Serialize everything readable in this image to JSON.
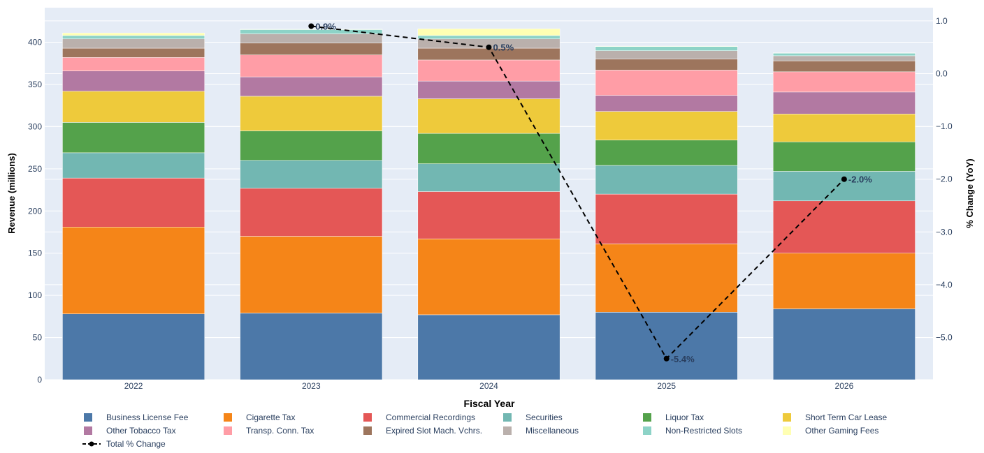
{
  "chart_data": {
    "type": "bar",
    "stacked": true,
    "xlabel": "Fiscal Year",
    "ylabel": "Revenue (millions)",
    "y2label": "% Change (YoY)",
    "categories": [
      "2022",
      "2023",
      "2024",
      "2025",
      "2026"
    ],
    "ylim": [
      0,
      441
    ],
    "y2lim": [
      -5.8,
      1.25
    ],
    "yticks": [
      0,
      50,
      100,
      150,
      200,
      250,
      300,
      350,
      400
    ],
    "y2ticks": [
      1,
      0,
      -1,
      -2,
      -3,
      -4,
      -5
    ],
    "y2tick_labels": [
      "1.0",
      "0.0",
      "−1.0",
      "−2.0",
      "−3.0",
      "−4.0",
      "−5.0"
    ],
    "legend_position": "bottom",
    "grid": true,
    "colors": {
      "plot_bg": "#e5ecf6",
      "grid": "#ffffff",
      "text": "#2a3f5f",
      "line": "#000000"
    },
    "series": [
      {
        "name": "Business License Fee",
        "color": "#4c78a8",
        "values": [
          78,
          79,
          77,
          80,
          84
        ]
      },
      {
        "name": "Cigarette Tax",
        "color": "#f58518",
        "values": [
          103,
          91,
          90,
          81,
          66
        ]
      },
      {
        "name": "Commercial Recordings",
        "color": "#e45756",
        "values": [
          58,
          57,
          56,
          59,
          62
        ]
      },
      {
        "name": "Securities",
        "color": "#72b7b2",
        "values": [
          30,
          33,
          33,
          34,
          35
        ]
      },
      {
        "name": "Liquor Tax",
        "color": "#54a24b",
        "values": [
          36,
          35,
          36,
          30,
          35
        ]
      },
      {
        "name": "Short Term Car Lease",
        "color": "#eeca3b",
        "values": [
          37,
          41,
          41,
          34,
          33
        ]
      },
      {
        "name": "Other Tobacco Tax",
        "color": "#b279a2",
        "values": [
          24,
          23,
          21,
          19,
          26
        ]
      },
      {
        "name": "Transp. Conn. Tax",
        "color": "#ff9da6",
        "values": [
          16,
          26,
          25,
          30,
          24
        ]
      },
      {
        "name": "Expired Slot Mach. Vchrs.",
        "color": "#9d755d",
        "values": [
          11,
          14,
          14,
          13,
          13
        ]
      },
      {
        "name": "Miscellaneous",
        "color": "#bab0ac",
        "values": [
          11,
          11,
          11,
          10,
          6
        ]
      },
      {
        "name": "Non-Restricted Slots",
        "color": "#8dd3c7",
        "values": [
          4,
          5,
          4,
          5,
          3
        ]
      },
      {
        "name": "Other Gaming Fees",
        "color": "#ffffb3",
        "values": [
          3,
          0.5,
          8,
          0.5,
          0.5
        ]
      }
    ],
    "line_series": {
      "name": "Total % Change",
      "axis": "y2",
      "values": [
        0.9,
        0.5,
        -5.4,
        -2.0
      ],
      "x": [
        "2023",
        "2024",
        "2025",
        "2026"
      ],
      "labels": [
        "0.9%",
        "0.5%",
        "-5.4%",
        "-2.0%"
      ]
    }
  }
}
